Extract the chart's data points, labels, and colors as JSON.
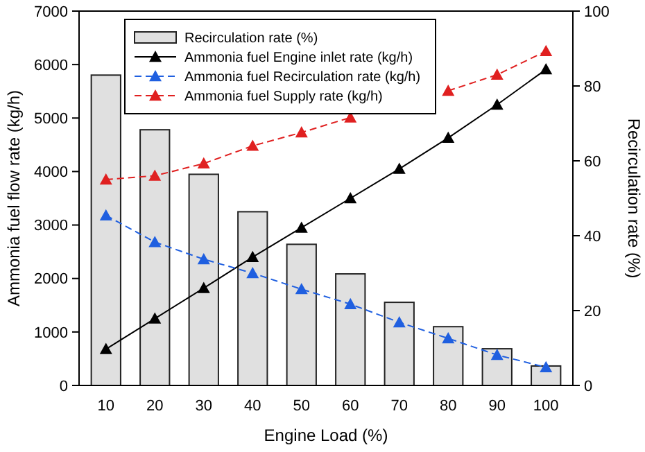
{
  "chart_data": {
    "type": "bar",
    "xlabel": "Engine Load (%)",
    "ylabel": "Ammonia fuel flow rate (kg/h)",
    "y2label": "Recirculation rate (%)",
    "categories": [
      "10",
      "20",
      "30",
      "40",
      "50",
      "60",
      "70",
      "80",
      "90",
      "100"
    ],
    "series": [
      {
        "name": "Recirculation rate (%)",
        "axis": "y2",
        "color": "#e0e0e0",
        "values": [
          82.9,
          68.3,
          56.4,
          46.4,
          37.7,
          29.8,
          22.2,
          15.7,
          9.8,
          5.2
        ]
      },
      {
        "name": "Ammonia fuel Engine inlet rate (kg/h)",
        "type": "line",
        "color": "#000000",
        "line_style": "solid",
        "values": [
          680,
          1250,
          1820,
          2400,
          2950,
          3500,
          4050,
          4630,
          5250,
          5910
        ]
      },
      {
        "name": "Ammonia fuel Recirculation rate (kg/h)",
        "type": "line",
        "color": "#1f5fe0",
        "line_style": "dashed",
        "values": [
          3180,
          2680,
          2360,
          2100,
          1800,
          1520,
          1180,
          880,
          570,
          340
        ]
      },
      {
        "name": "Ammonia fuel Supply rate (kg/h)",
        "type": "line",
        "color": "#e02020",
        "line_style": "dashed",
        "values": [
          3850,
          3920,
          4150,
          4480,
          4730,
          5010,
          null,
          5510,
          5810,
          6250
        ]
      }
    ],
    "ylim": [
      0,
      7000
    ],
    "yticks": [
      0,
      1000,
      2000,
      3000,
      4000,
      5000,
      6000,
      7000
    ],
    "y2lim": [
      0,
      100
    ],
    "y2ticks": [
      0,
      20,
      40,
      60,
      80,
      100
    ],
    "marker": "triangle",
    "legend": "top",
    "grid": false
  }
}
